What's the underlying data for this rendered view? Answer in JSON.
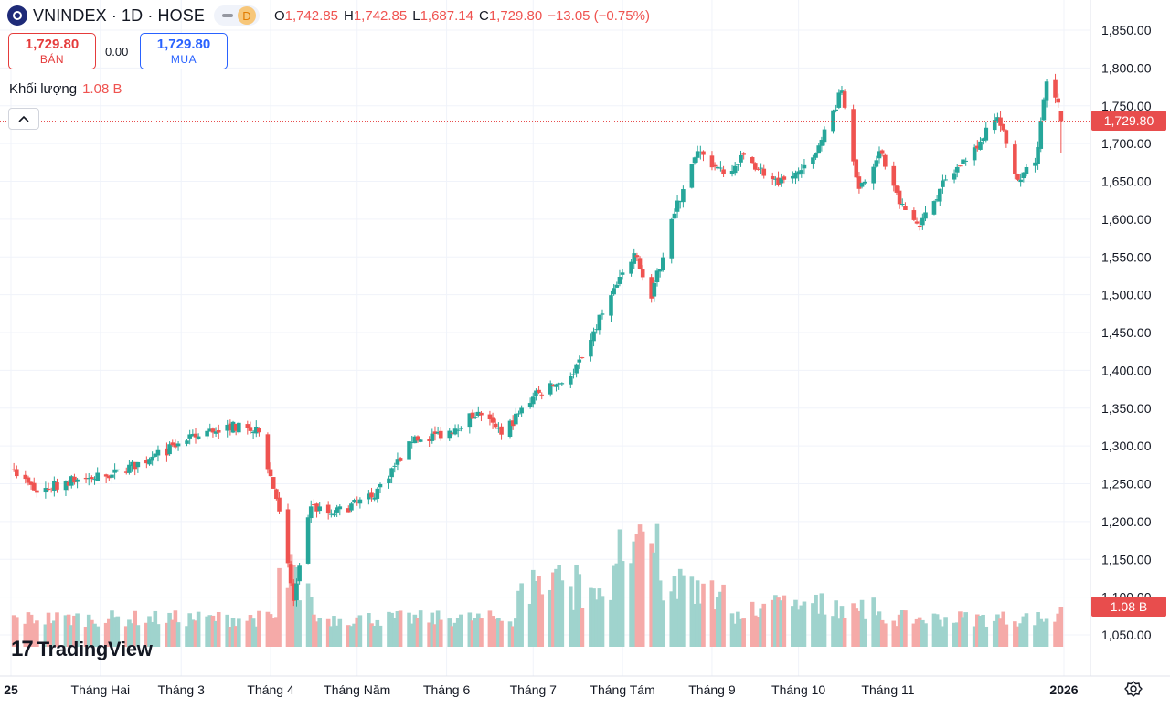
{
  "header": {
    "title": "VNINDEX · 1D · HOSE",
    "interval_badge": "D",
    "open_label": "O",
    "open_value": "1,742.85",
    "high_label": "H",
    "high_value": "1,742.85",
    "low_label": "L",
    "low_value": "1,687.14",
    "close_label": "C",
    "close_value": "1,729.80",
    "change_value": "−13.05 (−0.75%)"
  },
  "trade": {
    "sell_price": "1,729.80",
    "sell_label": "BÁN",
    "spread": "0.00",
    "buy_price": "1,729.80",
    "buy_label": "MUA"
  },
  "volume": {
    "label": "Khối lượng",
    "value": "1.08 B"
  },
  "price_axis": {
    "last_price_tag": "1,729.80",
    "last_volume_tag": "1.08 B"
  },
  "branding": {
    "logo_text": "TradingView"
  },
  "colors": {
    "up": "#26a69a",
    "down": "#ef5350",
    "up_volume": "#9fd3cd",
    "down_volume": "#f5aaa8",
    "last_price": "#e84d4d"
  },
  "chart_data": {
    "type": "candlestick",
    "title": "VNINDEX · 1D · HOSE",
    "ylabel": "",
    "ylim": [
      1010,
      1870
    ],
    "y_ticks": [
      "1,850.00",
      "1,800.00",
      "1,750.00",
      "1,700.00",
      "1,650.00",
      "1,600.00",
      "1,550.00",
      "1,500.00",
      "1,450.00",
      "1,400.00",
      "1,350.00",
      "1,300.00",
      "1,250.00",
      "1,200.00",
      "1,150.00",
      "1,100.00",
      "1,050.00"
    ],
    "y_tick_values": [
      1850,
      1800,
      1750,
      1700,
      1650,
      1600,
      1550,
      1500,
      1450,
      1400,
      1350,
      1300,
      1250,
      1200,
      1150,
      1100,
      1050
    ],
    "x_ticks": [
      "25",
      "Tháng Hai",
      "Tháng 3",
      "Tháng 4",
      "Tháng Năm",
      "Tháng 6",
      "Tháng 7",
      "Tháng Tám",
      "Tháng 9",
      "Tháng 10",
      "Tháng 11",
      "2026"
    ],
    "x_tick_dates": [
      "2025-01-01",
      "2025-02-01",
      "2025-03-01",
      "2025-04-01",
      "2025-05-01",
      "2025-06-01",
      "2025-07-01",
      "2025-08-01",
      "2025-09-01",
      "2025-10-01",
      "2025-11-01",
      "2026-01-01"
    ],
    "last_close": 1729.8,
    "series_close_anchors": [
      [
        "2025-01-02",
        1268
      ],
      [
        "2025-01-10",
        1238
      ],
      [
        "2025-01-20",
        1253
      ],
      [
        "2025-02-05",
        1262
      ],
      [
        "2025-02-18",
        1283
      ],
      [
        "2025-03-03",
        1307
      ],
      [
        "2025-03-17",
        1328
      ],
      [
        "2025-03-28",
        1318
      ],
      [
        "2025-04-03",
        1230
      ],
      [
        "2025-04-09",
        1095
      ],
      [
        "2025-04-15",
        1220
      ],
      [
        "2025-04-22",
        1210
      ],
      [
        "2025-05-06",
        1232
      ],
      [
        "2025-05-20",
        1305
      ],
      [
        "2025-06-02",
        1320
      ],
      [
        "2025-06-12",
        1345
      ],
      [
        "2025-06-20",
        1315
      ],
      [
        "2025-07-01",
        1365
      ],
      [
        "2025-07-15",
        1395
      ],
      [
        "2025-07-25",
        1475
      ],
      [
        "2025-08-05",
        1555
      ],
      [
        "2025-08-11",
        1495
      ],
      [
        "2025-08-18",
        1600
      ],
      [
        "2025-08-27",
        1690
      ],
      [
        "2025-09-05",
        1660
      ],
      [
        "2025-09-12",
        1685
      ],
      [
        "2025-09-24",
        1645
      ],
      [
        "2025-10-02",
        1665
      ],
      [
        "2025-10-09",
        1705
      ],
      [
        "2025-10-16",
        1770
      ],
      [
        "2025-10-22",
        1640
      ],
      [
        "2025-10-29",
        1690
      ],
      [
        "2025-11-05",
        1620
      ],
      [
        "2025-11-12",
        1590
      ],
      [
        "2025-11-19",
        1640
      ],
      [
        "2025-12-01",
        1695
      ],
      [
        "2025-12-09",
        1735
      ],
      [
        "2025-12-16",
        1652
      ],
      [
        "2025-12-22",
        1675
      ],
      [
        "2025-12-26",
        1782
      ],
      [
        "2025-12-31",
        1743
      ]
    ],
    "volume_last": "1.08 B"
  }
}
